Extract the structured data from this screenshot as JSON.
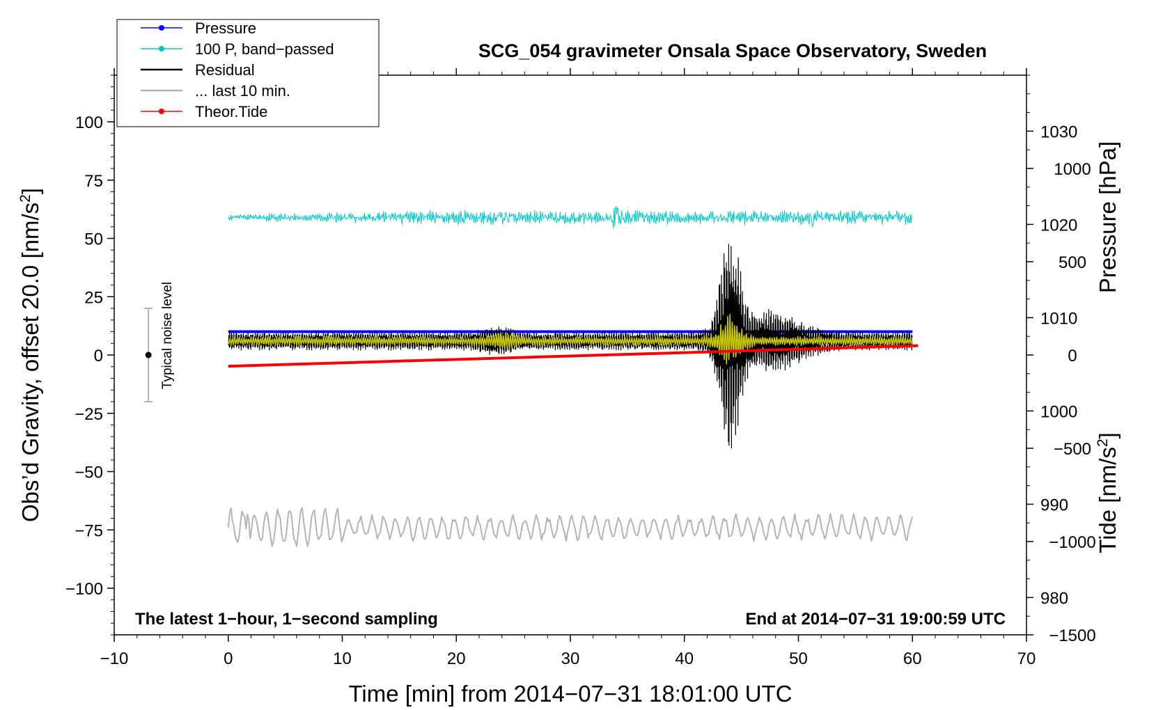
{
  "chart_data": {
    "type": "line",
    "title": "SCG_054 gravimeter Onsala Space Observatory, Sweden",
    "xlabel": "Time [min] from 2014−07−31 18:01:00 UTC",
    "ylabel_left_main": "Obs’d Gravity, offset 20.0 [nm/s",
    "ylabel_left_sup": "2",
    "ylabel_left_end": "]",
    "ylabel_right_top": "Pressure [hPa]",
    "ylabel_right_bottom_main": "Tide [nm/s",
    "ylabel_right_bottom_sup": "2",
    "ylabel_right_bottom_end": "]",
    "annotation_left": "The latest 1−hour, 1−second sampling",
    "annotation_right": "End at 2014−07−31 19:00:59 UTC",
    "noise_label": "Typical noise level",
    "xlim": [
      -10,
      70
    ],
    "ylim_left": [
      -120,
      120
    ],
    "ylim_pressure": [
      976,
      1036
    ],
    "ylim_tide": [
      -1500,
      1500
    ],
    "x_ticks": [
      -10,
      0,
      10,
      20,
      30,
      40,
      50,
      60,
      70
    ],
    "x_tick_labels": [
      "−10",
      "0",
      "10",
      "20",
      "30",
      "40",
      "50",
      "60",
      "70"
    ],
    "y_ticks_left": [
      100,
      75,
      50,
      25,
      0,
      -25,
      -50,
      -75,
      -100
    ],
    "y_tick_labels_left": [
      "100",
      "75",
      "50",
      "25",
      "0",
      "−25",
      "−50",
      "−75",
      "−100"
    ],
    "y_ticks_pressure": [
      1030,
      1020,
      1010,
      1000,
      990,
      980
    ],
    "y_tick_labels_pressure": [
      "1030",
      "1020",
      "1010",
      "1000",
      "990",
      "980"
    ],
    "y_ticks_tide": [
      1000,
      500,
      0,
      -500,
      -1000,
      -1500
    ],
    "y_tick_labels_tide": [
      "1000",
      "500",
      "0",
      "−500",
      "−1000",
      "−1500"
    ],
    "noise_bar": {
      "x": -7,
      "y_low": -20,
      "y_high": 20,
      "y_center": 0
    },
    "legend_position": "top-left",
    "legend": [
      {
        "label": "Pressure",
        "color": "#0000ff",
        "marker": true
      },
      {
        "label": "100 P, band−passed",
        "color": "#00c8c8",
        "marker": true
      },
      {
        "label": "Residual",
        "color": "#000000",
        "marker": false
      },
      {
        "label": "... last 10 min.",
        "color": "#b4b4b4",
        "marker": false
      },
      {
        "label": "Theor.Tide",
        "color": "#ff0000",
        "marker": true
      }
    ],
    "series": [
      {
        "name": "Pressure",
        "color": "#0000ff",
        "axis": "pressure",
        "x": [
          0,
          60
        ],
        "y": [
          1008.5,
          1008.5
        ]
      },
      {
        "name": "100 P, band−passed",
        "color": "#00c8c8",
        "axis": "left",
        "x_range": [
          0,
          60
        ],
        "baseline": 59,
        "noise_amplitude": 2.5,
        "events": [
          [
            34,
            4
          ],
          [
            51,
            3
          ]
        ]
      },
      {
        "name": "Residual",
        "color": "#000000",
        "axis": "left",
        "x_range": [
          0,
          60
        ],
        "baseline": 6,
        "noise_amplitude": 4,
        "peak": [
          44,
          44
        ],
        "range": [
          -48,
          53
        ]
      },
      {
        "name": "yellow_smoothed",
        "color": "#c8c800",
        "axis": "left",
        "x_range": [
          0,
          60
        ],
        "baseline": 6,
        "noise_amplitude": 2,
        "peak": [
          44,
          10
        ]
      },
      {
        "name": "Theor.Tide",
        "color": "#ff0000",
        "axis": "tide",
        "x": [
          0,
          60.5
        ],
        "y": [
          -60,
          50
        ]
      },
      {
        "name": "... last 10 min.",
        "color": "#b4b4b4",
        "axis": "left",
        "x_range": [
          0,
          60
        ],
        "baseline": -74,
        "noise_amplitude": 6,
        "range": [
          -83,
          -60
        ]
      }
    ],
    "grid": false
  }
}
